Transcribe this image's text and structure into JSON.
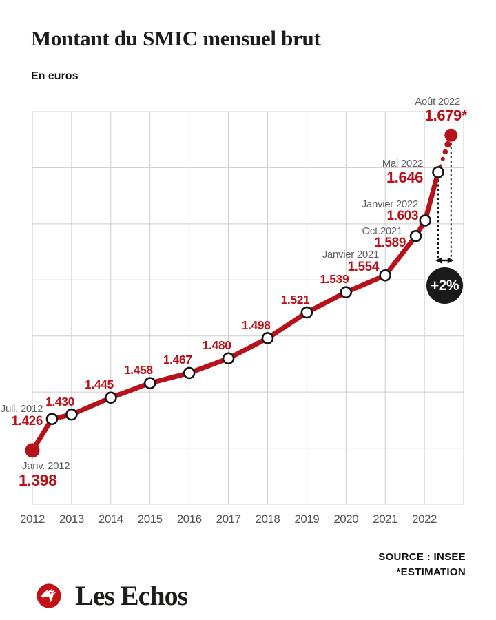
{
  "header": {
    "title": "Montant du SMIC mensuel brut",
    "subtitle": "En euros"
  },
  "footer": {
    "source": "SOURCE : INSEE",
    "estimation": "*ESTIMATION",
    "logo_text": "Les Echos"
  },
  "colors": {
    "accent_red": "#b5121b",
    "date_label_gray": "#5f5f5f",
    "grid_gray": "#cccccc",
    "badge_black": "#1a1a1a",
    "logo_red": "#c41118",
    "marker_stroke": "#161616"
  },
  "chart_data": {
    "type": "line",
    "title": "Montant du SMIC mensuel brut",
    "unit": "euros",
    "xlim": [
      2012,
      2023
    ],
    "ylim": [
      1350,
      1700
    ],
    "grid": true,
    "x_tick_labels": [
      "2012",
      "2013",
      "2014",
      "2015",
      "2016",
      "2017",
      "2018",
      "2019",
      "2020",
      "2021",
      "2022"
    ],
    "points": [
      {
        "x": 2012.0,
        "value": 1398,
        "value_label": "1.398",
        "date_label": "Janv. 2012",
        "marker": "filled-dot"
      },
      {
        "x": 2012.5,
        "value": 1426,
        "value_label": "1.426",
        "date_label": "Juil. 2012",
        "marker": "open-circle"
      },
      {
        "x": 2013.0,
        "value": 1430,
        "value_label": "1.430",
        "marker": "open-circle"
      },
      {
        "x": 2014.0,
        "value": 1445,
        "value_label": "1.445",
        "marker": "open-circle"
      },
      {
        "x": 2015.0,
        "value": 1458,
        "value_label": "1.458",
        "marker": "open-circle"
      },
      {
        "x": 2016.0,
        "value": 1467,
        "value_label": "1.467",
        "marker": "open-circle"
      },
      {
        "x": 2017.0,
        "value": 1480,
        "value_label": "1.480",
        "marker": "open-circle"
      },
      {
        "x": 2018.0,
        "value": 1498,
        "value_label": "1.498",
        "marker": "open-circle"
      },
      {
        "x": 2019.0,
        "value": 1521,
        "value_label": "1.521",
        "marker": "open-circle"
      },
      {
        "x": 2020.0,
        "value": 1539,
        "value_label": "1.539",
        "marker": "open-circle"
      },
      {
        "x": 2021.0,
        "value": 1554,
        "value_label": "1.554",
        "date_label": "Janvier 2021",
        "marker": "open-circle"
      },
      {
        "x": 2021.75,
        "value": 1589,
        "value_label": "1.589",
        "date_label": "Oct.2021",
        "marker": "open-circle"
      },
      {
        "x": 2022.0,
        "value": 1603,
        "value_label": "1.603",
        "date_label": "Janvier 2022",
        "marker": "open-circle"
      },
      {
        "x": 2022.33,
        "value": 1646,
        "value_label": "1.646",
        "date_label": "Mai 2022",
        "marker": "open-circle"
      },
      {
        "x": 2022.58,
        "value": 1679,
        "value_label": "1.679*",
        "date_label": "Août 2022",
        "marker": "filled-dot",
        "estimated": true
      }
    ],
    "estimation_annotation": {
      "badge": "+2%",
      "note": "dotted segment between Mai 2022 and Août 2022 with dashed bracket"
    }
  }
}
